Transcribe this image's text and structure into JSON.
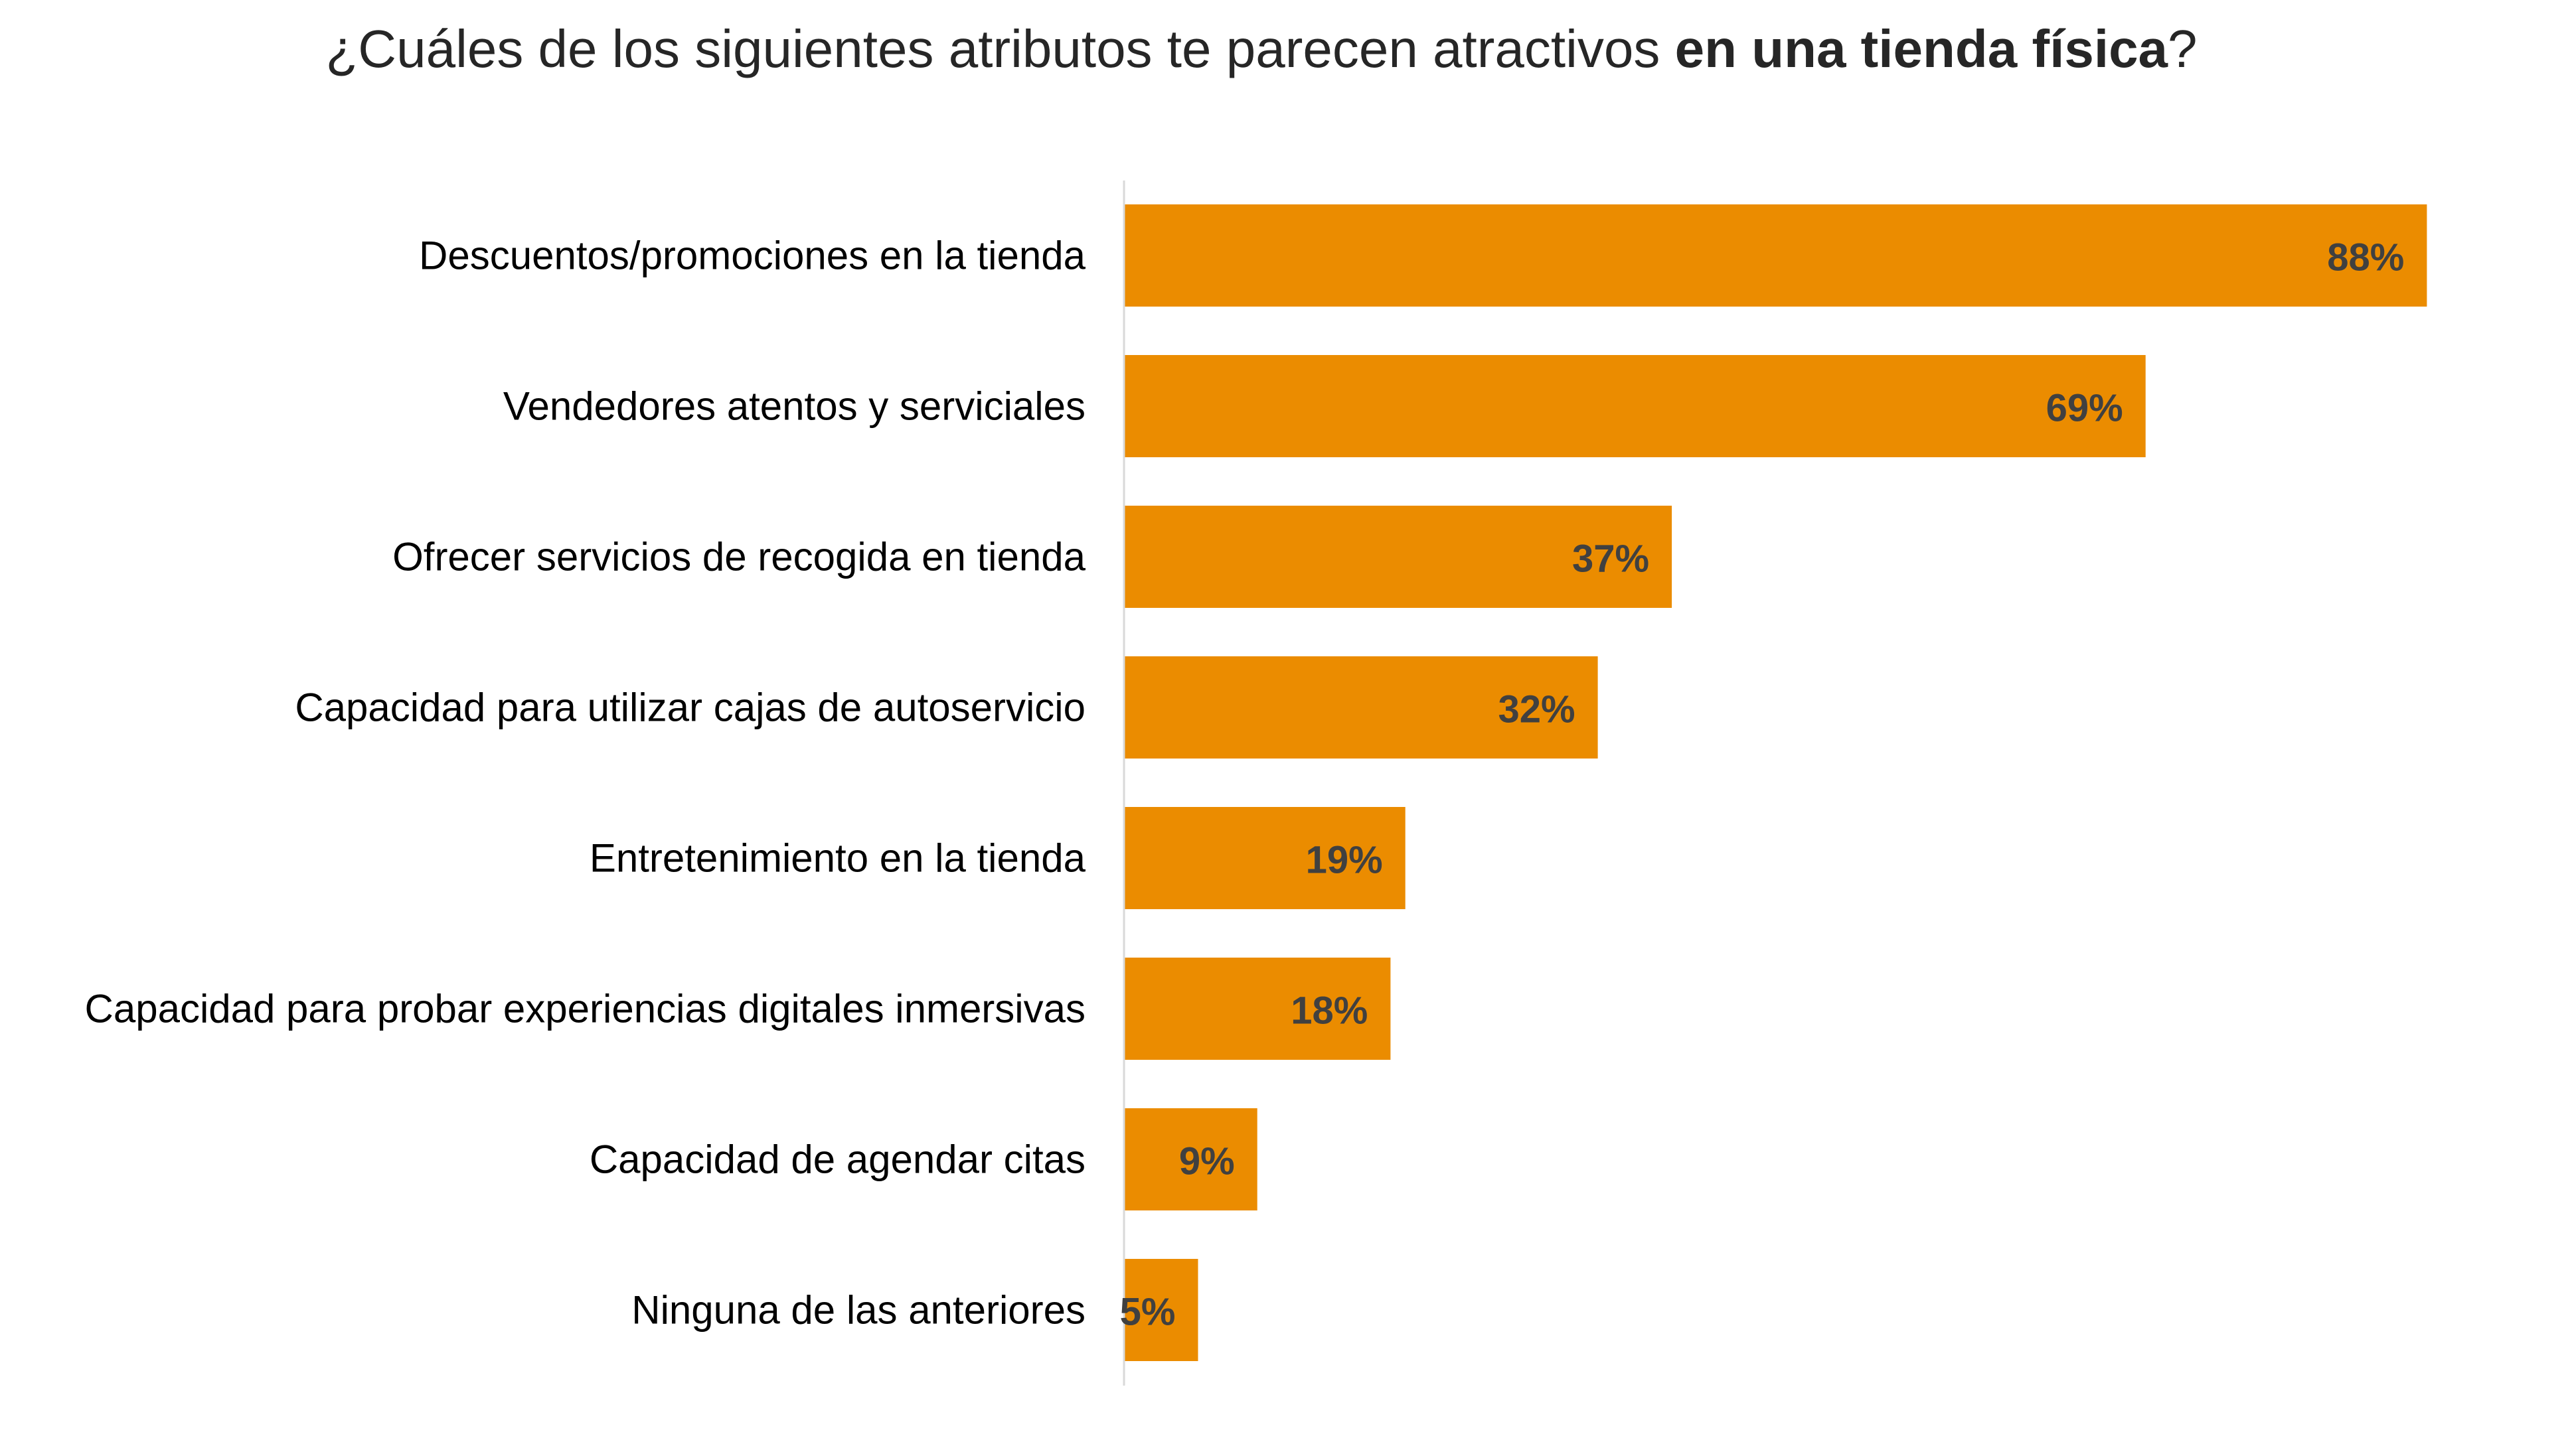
{
  "title": {
    "prefix": "¿Cuáles de los siguientes atributos te parecen atractivos ",
    "bold": "en una tienda física",
    "suffix": "?"
  },
  "chart_data": {
    "type": "bar",
    "orientation": "horizontal",
    "title": "¿Cuáles de los siguientes atributos te parecen atractivos en una tienda física?",
    "categories": [
      "Descuentos/promociones en la tienda",
      "Vendedores atentos y serviciales",
      "Ofrecer servicios de recogida en tienda",
      "Capacidad para utilizar cajas de autoservicio",
      "Entretenimiento en la tienda",
      "Capacidad para probar experiencias digitales inmersivas",
      "Capacidad de agendar citas",
      "Ninguna de las anteriores"
    ],
    "values": [
      88,
      69,
      37,
      32,
      19,
      18,
      9,
      5
    ],
    "value_labels": [
      "88%",
      "69%",
      "37%",
      "32%",
      "19%",
      "18%",
      "9%",
      "5%"
    ],
    "unit": "%",
    "xlim": [
      0,
      100
    ],
    "xlabel": "",
    "ylabel": "",
    "grid": false,
    "legend": "none"
  },
  "colors": {
    "bar": "#EB8C00",
    "value_text": "#404040",
    "axis_line": "#D9D9D9",
    "category_text": "#000000"
  }
}
